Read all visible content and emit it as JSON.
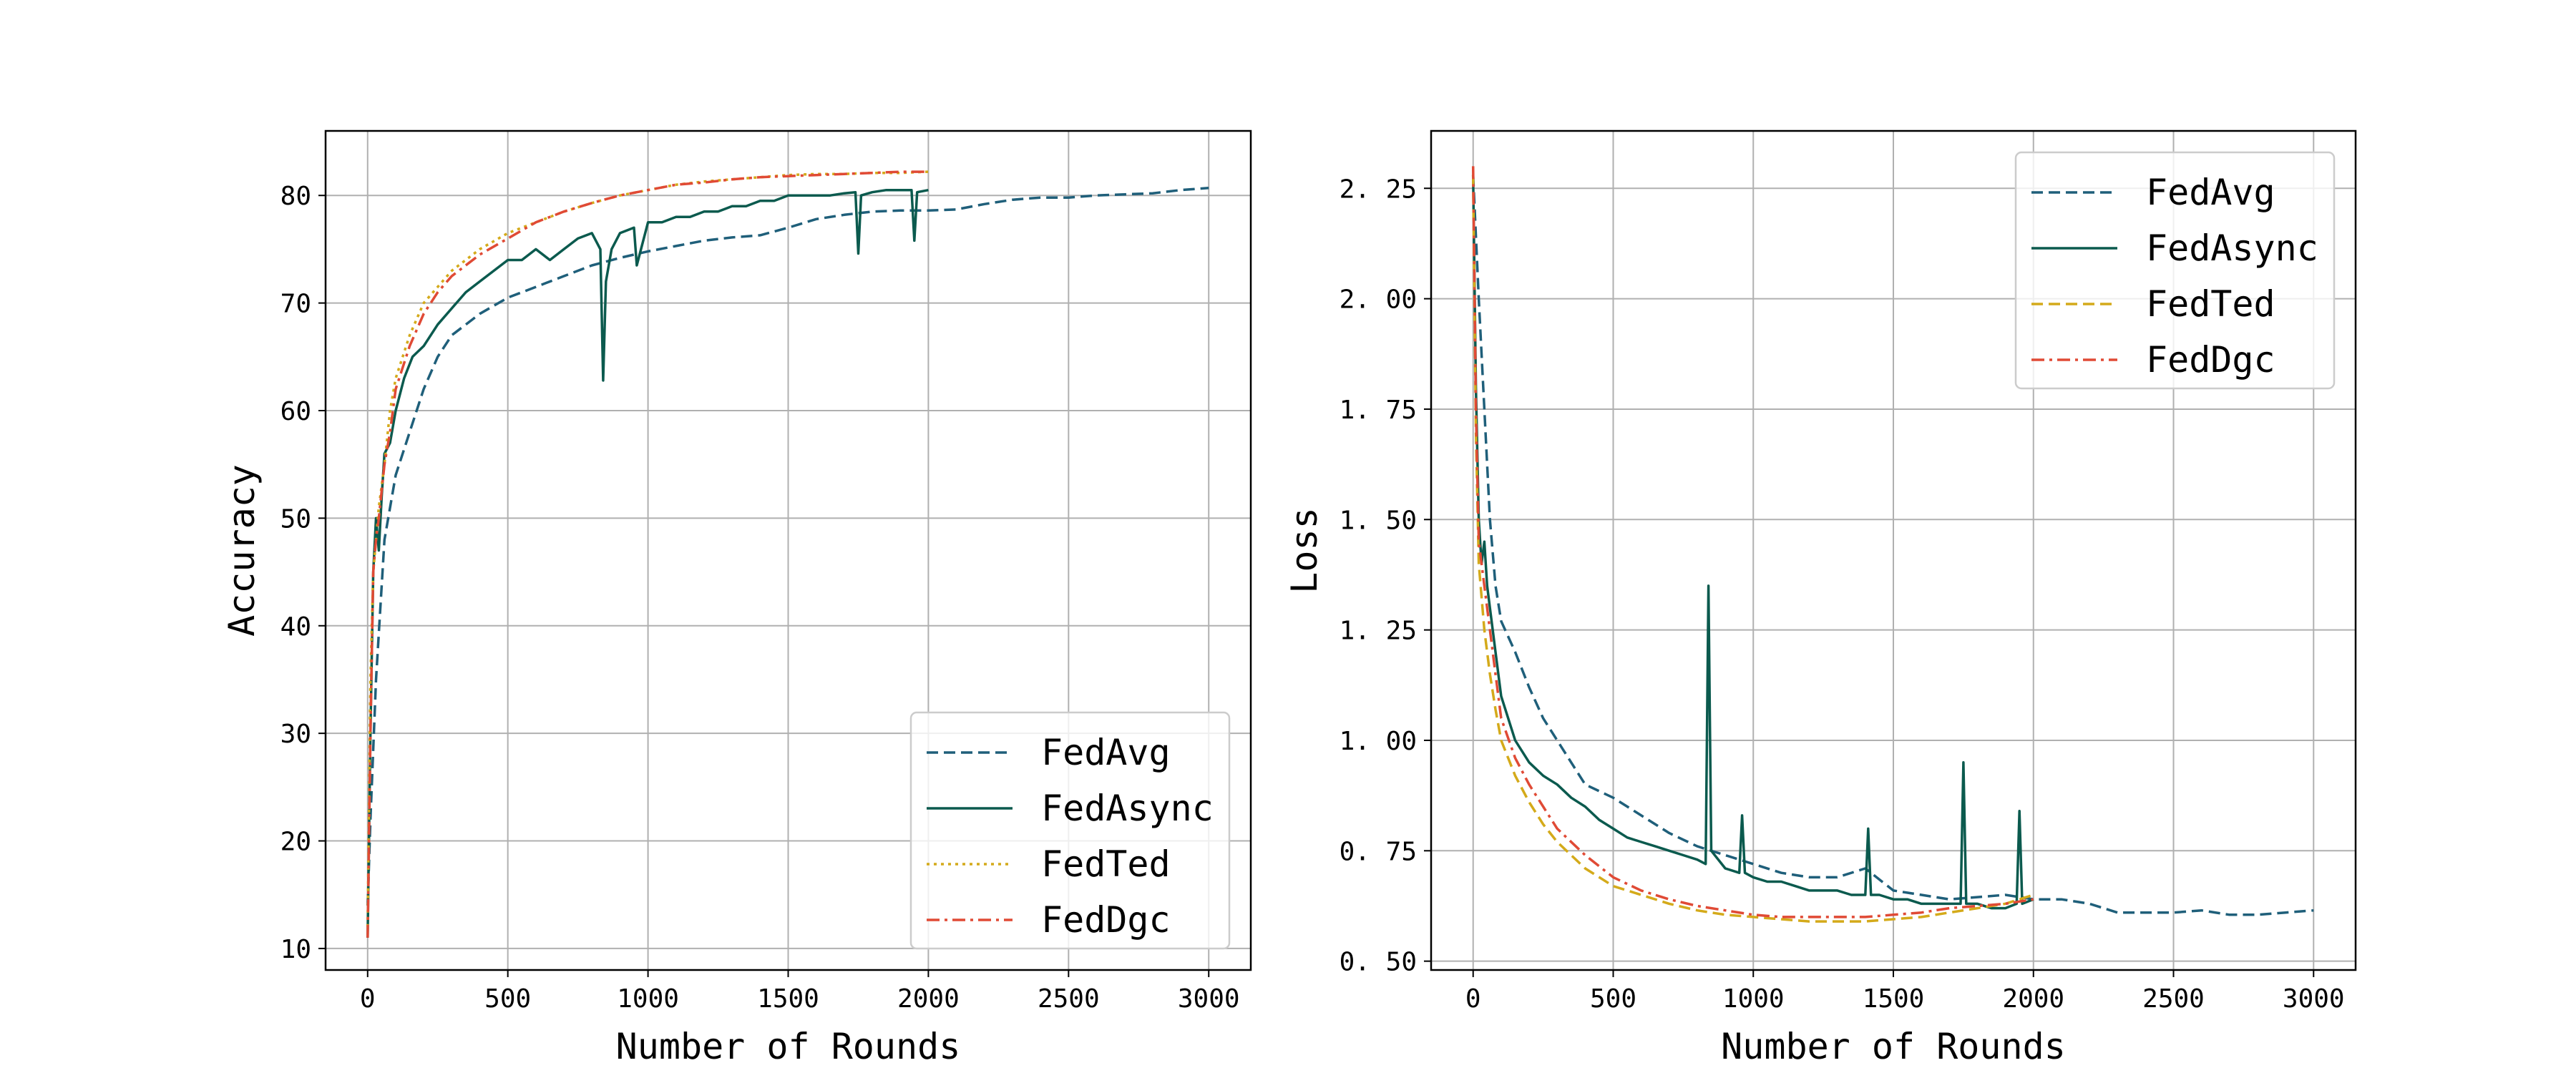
{
  "chart_data": [
    {
      "type": "line",
      "title": "",
      "xlabel": "Number of Rounds",
      "ylabel": "Accuracy",
      "xlim": [
        -150,
        3150
      ],
      "ylim": [
        8,
        86
      ],
      "xticks": [
        0,
        500,
        1000,
        1500,
        2000,
        2500,
        3000
      ],
      "yticks": [
        10,
        20,
        30,
        40,
        50,
        60,
        70,
        80
      ],
      "grid": true,
      "legend_position": "lower right",
      "series": [
        {
          "name": "FedAvg",
          "color": "#1f5f7a",
          "style": "dashed",
          "x": [
            0,
            10,
            30,
            60,
            100,
            150,
            200,
            250,
            300,
            400,
            500,
            600,
            700,
            800,
            900,
            1000,
            1100,
            1200,
            1300,
            1400,
            1500,
            1600,
            1700,
            1800,
            1900,
            2000,
            2100,
            2200,
            2300,
            2400,
            2500,
            2600,
            2700,
            2800,
            2900,
            3000
          ],
          "y": [
            14,
            22,
            35,
            48,
            54,
            58,
            62,
            65,
            67,
            69,
            70.5,
            71.5,
            72.5,
            73.5,
            74.2,
            74.8,
            75.3,
            75.8,
            76.1,
            76.3,
            77,
            77.8,
            78.2,
            78.5,
            78.6,
            78.6,
            78.7,
            79.2,
            79.6,
            79.8,
            79.8,
            80,
            80.1,
            80.2,
            80.5,
            80.7
          ]
        },
        {
          "name": "FedAsync",
          "color": "#0b5a4e",
          "style": "solid",
          "x": [
            0,
            10,
            20,
            30,
            40,
            50,
            60,
            80,
            100,
            130,
            160,
            200,
            250,
            300,
            350,
            400,
            450,
            500,
            550,
            600,
            650,
            700,
            750,
            800,
            830,
            840,
            850,
            870,
            900,
            950,
            960,
            1000,
            1050,
            1100,
            1150,
            1200,
            1250,
            1300,
            1350,
            1400,
            1450,
            1500,
            1550,
            1600,
            1650,
            1700,
            1740,
            1750,
            1760,
            1800,
            1850,
            1900,
            1940,
            1950,
            1960,
            2000
          ],
          "y": [
            11,
            30,
            45,
            50,
            47,
            52,
            56,
            57,
            60,
            63,
            65,
            66,
            68,
            69.5,
            71,
            72,
            73,
            74,
            74,
            75,
            74,
            75,
            76,
            76.5,
            75,
            62.8,
            72,
            75,
            76.5,
            77,
            73.5,
            77.5,
            77.5,
            78,
            78,
            78.5,
            78.5,
            79,
            79,
            79.5,
            79.5,
            80,
            80,
            80,
            80,
            80.2,
            80.3,
            74.6,
            80,
            80.3,
            80.5,
            80.5,
            80.5,
            75.8,
            80.3,
            80.5
          ]
        },
        {
          "name": "FedTed",
          "color": "#d4aa1a",
          "style": "dotted",
          "x": [
            0,
            10,
            20,
            40,
            60,
            80,
            100,
            150,
            200,
            250,
            300,
            400,
            500,
            600,
            700,
            800,
            900,
            1000,
            1100,
            1200,
            1300,
            1400,
            1500,
            1600,
            1700,
            1800,
            1900,
            2000
          ],
          "y": [
            12,
            35,
            45,
            51,
            55,
            60,
            63,
            67,
            70,
            71.5,
            73,
            75,
            76.5,
            77.5,
            78.5,
            79.3,
            80,
            80.5,
            81,
            81.3,
            81.5,
            81.7,
            81.9,
            82,
            82,
            82.1,
            82.1,
            82.2
          ]
        },
        {
          "name": "FedDgc",
          "color": "#e04a35",
          "style": "dashdot",
          "x": [
            0,
            10,
            20,
            30,
            40,
            60,
            80,
            100,
            150,
            200,
            250,
            300,
            400,
            500,
            600,
            700,
            800,
            900,
            1000,
            1100,
            1200,
            1300,
            1400,
            1500,
            1600,
            1700,
            1800,
            1900,
            2000
          ],
          "y": [
            11,
            30,
            45,
            48,
            50,
            55,
            58,
            62,
            66,
            69,
            71,
            72.5,
            74.5,
            76,
            77.5,
            78.5,
            79.3,
            80,
            80.5,
            81,
            81.2,
            81.5,
            81.7,
            81.8,
            81.9,
            82,
            82.1,
            82.2,
            82.2
          ]
        }
      ]
    },
    {
      "type": "line",
      "title": "",
      "xlabel": "Number of Rounds",
      "ylabel": "Loss",
      "xlim": [
        -150,
        3150
      ],
      "ylim": [
        0.48,
        2.38
      ],
      "xticks": [
        0,
        500,
        1000,
        1500,
        2000,
        2500,
        3000
      ],
      "yticks": [
        0.5,
        0.75,
        1.0,
        1.25,
        1.5,
        1.75,
        2.0,
        2.25
      ],
      "ytick_labels": [
        "0. 50",
        "0. 75",
        "1. 00",
        "1. 25",
        "1. 50",
        "1. 75",
        "2. 00",
        "2. 25"
      ],
      "grid": true,
      "legend_position": "upper right",
      "series": [
        {
          "name": "FedAvg",
          "color": "#1f5f7a",
          "style": "dashed",
          "x": [
            0,
            20,
            40,
            60,
            80,
            100,
            150,
            200,
            250,
            300,
            400,
            500,
            600,
            700,
            800,
            900,
            1000,
            1100,
            1200,
            1300,
            1400,
            1500,
            1600,
            1700,
            1800,
            1900,
            2000,
            2100,
            2200,
            2300,
            2400,
            2500,
            2600,
            2700,
            2800,
            2900,
            3000
          ],
          "y": [
            2.28,
            2.0,
            1.75,
            1.5,
            1.35,
            1.27,
            1.2,
            1.12,
            1.05,
            1.0,
            0.9,
            0.87,
            0.83,
            0.79,
            0.76,
            0.74,
            0.72,
            0.7,
            0.69,
            0.69,
            0.71,
            0.66,
            0.65,
            0.64,
            0.645,
            0.65,
            0.64,
            0.64,
            0.63,
            0.61,
            0.61,
            0.61,
            0.615,
            0.605,
            0.605,
            0.61,
            0.615
          ]
        },
        {
          "name": "FedAsync",
          "color": "#0b5a4e",
          "style": "solid",
          "x": [
            0,
            10,
            20,
            30,
            40,
            50,
            60,
            80,
            100,
            150,
            200,
            250,
            300,
            350,
            400,
            450,
            500,
            550,
            600,
            650,
            700,
            750,
            800,
            830,
            840,
            850,
            900,
            950,
            960,
            970,
            1000,
            1050,
            1100,
            1150,
            1200,
            1250,
            1300,
            1350,
            1400,
            1410,
            1420,
            1450,
            1500,
            1550,
            1600,
            1650,
            1700,
            1740,
            1750,
            1760,
            1800,
            1850,
            1900,
            1940,
            1950,
            1960,
            2000
          ],
          "y": [
            2.28,
            1.8,
            1.5,
            1.4,
            1.45,
            1.35,
            1.3,
            1.2,
            1.1,
            1.0,
            0.95,
            0.92,
            0.9,
            0.87,
            0.85,
            0.82,
            0.8,
            0.78,
            0.77,
            0.76,
            0.75,
            0.74,
            0.73,
            0.72,
            1.35,
            0.75,
            0.71,
            0.7,
            0.83,
            0.7,
            0.69,
            0.68,
            0.68,
            0.67,
            0.66,
            0.66,
            0.66,
            0.65,
            0.65,
            0.8,
            0.65,
            0.65,
            0.64,
            0.64,
            0.63,
            0.63,
            0.63,
            0.63,
            0.95,
            0.63,
            0.63,
            0.62,
            0.62,
            0.63,
            0.84,
            0.63,
            0.64
          ]
        },
        {
          "name": "FedTed",
          "color": "#d4aa1a",
          "style": "dashed",
          "x": [
            0,
            10,
            20,
            40,
            60,
            80,
            100,
            150,
            200,
            250,
            300,
            400,
            500,
            600,
            700,
            800,
            900,
            1000,
            1100,
            1200,
            1300,
            1400,
            1500,
            1600,
            1700,
            1800,
            1900,
            2000
          ],
          "y": [
            2.28,
            1.7,
            1.4,
            1.25,
            1.15,
            1.07,
            1.0,
            0.92,
            0.86,
            0.81,
            0.77,
            0.71,
            0.67,
            0.65,
            0.63,
            0.615,
            0.605,
            0.6,
            0.595,
            0.59,
            0.59,
            0.59,
            0.595,
            0.6,
            0.61,
            0.62,
            0.63,
            0.65
          ]
        },
        {
          "name": "FedDgc",
          "color": "#e04a35",
          "style": "dashdot",
          "x": [
            0,
            10,
            20,
            40,
            60,
            80,
            100,
            150,
            200,
            250,
            300,
            400,
            500,
            600,
            700,
            800,
            900,
            1000,
            1100,
            1200,
            1300,
            1400,
            1500,
            1600,
            1700,
            1800,
            1900,
            2000
          ],
          "y": [
            2.3,
            1.75,
            1.45,
            1.35,
            1.25,
            1.15,
            1.05,
            0.96,
            0.9,
            0.85,
            0.8,
            0.74,
            0.69,
            0.66,
            0.64,
            0.625,
            0.615,
            0.605,
            0.6,
            0.6,
            0.6,
            0.6,
            0.605,
            0.61,
            0.62,
            0.625,
            0.63,
            0.64
          ]
        }
      ]
    }
  ]
}
